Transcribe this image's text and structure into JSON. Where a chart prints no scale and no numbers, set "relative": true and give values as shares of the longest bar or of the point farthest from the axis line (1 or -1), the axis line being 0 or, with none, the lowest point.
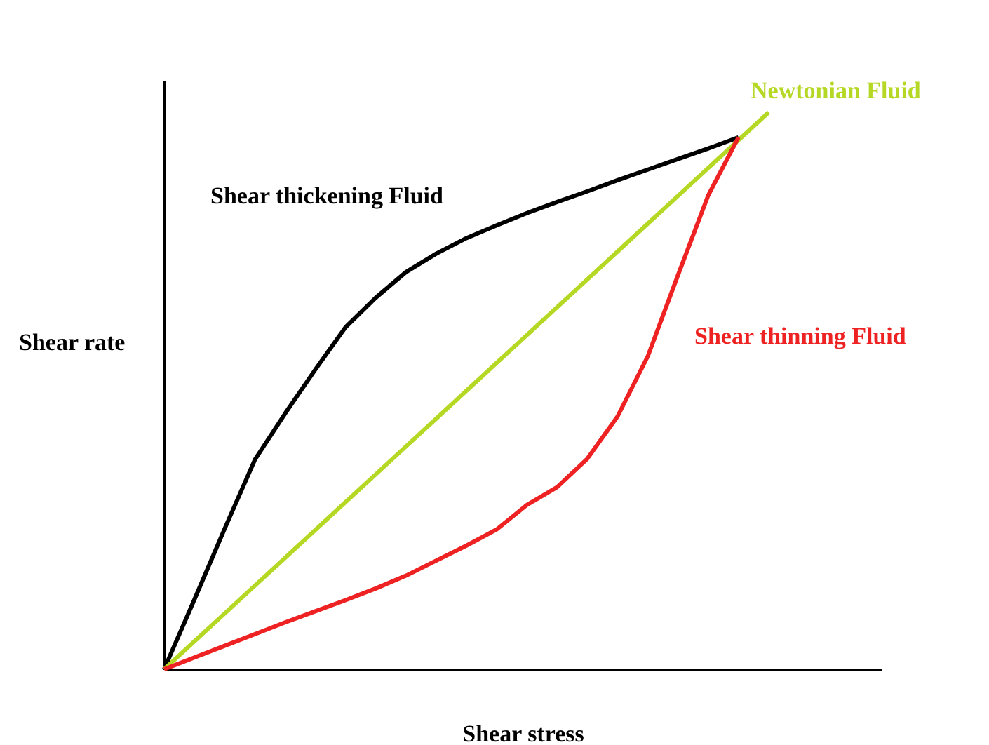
{
  "chart_data": {
    "type": "line",
    "relative": true,
    "xlabel": "Shear stress",
    "ylabel": "Shear rate",
    "grid": false,
    "marker": "none",
    "line_style": "solid",
    "categories": [
      null,
      null,
      null,
      null,
      null,
      null,
      null,
      null,
      null,
      null,
      null,
      null,
      null,
      null,
      null,
      null,
      null,
      null,
      null,
      null,
      null
    ],
    "series": [
      {
        "name": "Shear thickening Fluid",
        "color": "#000000",
        "values": [
          0,
          0.125,
          0.252,
          0.376,
          0.459,
          0.538,
          0.614,
          0.667,
          0.713,
          0.746,
          0.774,
          0.797,
          0.819,
          0.839,
          0.858,
          0.878,
          0.897,
          0.916,
          0.935,
          0.955,
          null
        ]
      },
      {
        "name": "Newtonian Fluid",
        "color": "#b5d824",
        "values": [
          0,
          0.05,
          0.1,
          0.15,
          0.2,
          0.25,
          0.3,
          0.35,
          0.4,
          0.45,
          0.5,
          0.55,
          0.6,
          0.65,
          0.7,
          0.75,
          0.8,
          0.85,
          0.9,
          0.95,
          1
        ]
      },
      {
        "name": "Shear thinning Fluid",
        "color": "#ee2222",
        "values": [
          0,
          0.021,
          0.042,
          0.063,
          0.084,
          0.104,
          0.124,
          0.145,
          0.168,
          0.195,
          0.222,
          0.251,
          0.295,
          0.327,
          0.378,
          0.454,
          0.562,
          0.708,
          0.851,
          0.955,
          null
        ]
      }
    ]
  }
}
